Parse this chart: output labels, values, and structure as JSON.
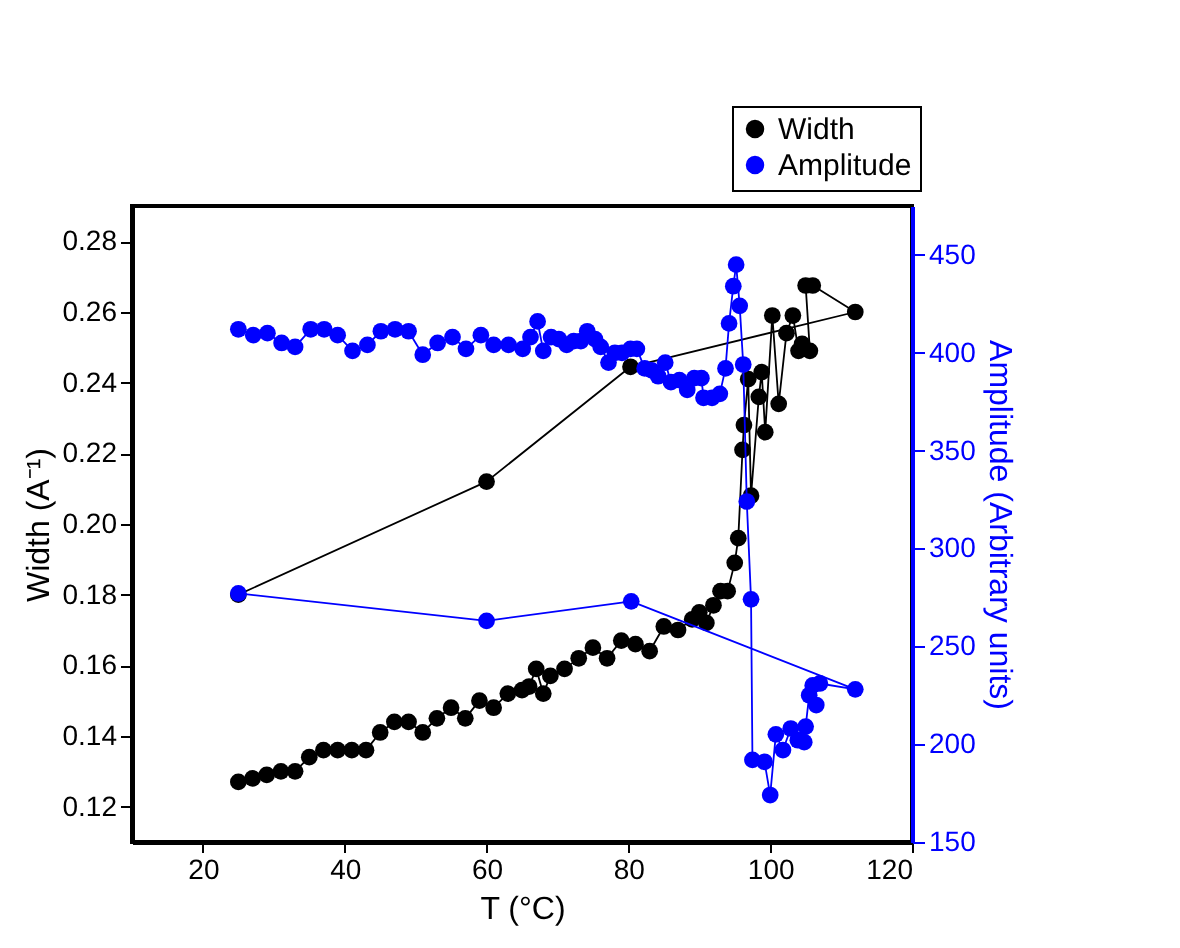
{
  "chart_data": {
    "type": "line",
    "xlabel": "T (°C)",
    "ylabel": "Width (A⁻¹)",
    "y2label": "Amplitude (Arbitrary units)",
    "xlim": [
      10,
      120
    ],
    "xticks": [
      20,
      40,
      60,
      80,
      100,
      120
    ],
    "ylim": [
      0.11,
      0.29
    ],
    "yticks": [
      0.12,
      0.14,
      0.16,
      0.18,
      {
        "value": 0.2,
        "label": "0.20"
      },
      0.22,
      0.24,
      0.26,
      0.28
    ],
    "y2lim": [
      150,
      475
    ],
    "y2ticks": [
      150,
      200,
      250,
      300,
      350,
      400,
      450
    ],
    "marker": "circle",
    "line_style": "solid",
    "legend": "top right",
    "grid": false,
    "series": [
      {
        "name": "Width",
        "color": "#000000",
        "x": [
          25,
          27,
          29,
          31,
          33,
          35,
          37,
          39,
          41,
          43,
          45,
          47,
          49,
          51,
          53,
          55,
          57,
          59,
          61,
          63,
          65,
          66,
          67,
          68,
          69,
          71,
          73,
          75,
          77,
          79,
          81,
          83,
          85,
          87,
          89,
          90,
          91,
          92,
          93,
          94,
          95,
          95.5,
          96.1,
          96.3,
          96.9,
          97.3,
          98.4,
          98.8,
          99.3,
          100.3,
          101.2,
          102.3,
          103.2,
          104,
          104.5,
          105.6,
          105,
          106,
          112,
          80.3,
          60,
          25
        ],
        "values": [
          0.127,
          0.128,
          0.129,
          0.13,
          0.13,
          0.134,
          0.136,
          0.136,
          0.136,
          0.136,
          0.141,
          0.144,
          0.144,
          0.141,
          0.145,
          0.148,
          0.145,
          0.15,
          0.148,
          0.152,
          0.153,
          0.154,
          0.159,
          0.152,
          0.157,
          0.159,
          0.162,
          0.165,
          0.162,
          0.167,
          0.166,
          0.164,
          0.171,
          0.17,
          0.173,
          0.175,
          0.172,
          0.177,
          0.181,
          0.181,
          0.189,
          0.196,
          0.221,
          0.228,
          0.241,
          0.208,
          0.236,
          0.243,
          0.226,
          0.259,
          0.234,
          0.254,
          0.259,
          0.249,
          0.251,
          0.249,
          0.2675,
          0.2675,
          0.26,
          0.2445,
          0.212,
          0.18
        ]
      },
      {
        "name": "Amplitude",
        "color": "#0000ff",
        "axis": "y2",
        "x": [
          25,
          27.1,
          29.1,
          31.1,
          33,
          35.2,
          37.1,
          39,
          41.1,
          43.2,
          45.1,
          47.1,
          49,
          51,
          53.1,
          55.2,
          57.1,
          59.2,
          61,
          63.1,
          65.1,
          66.2,
          67.2,
          68,
          69.1,
          70.2,
          71.3,
          72.3,
          73.3,
          74.2,
          75.3,
          76.1,
          77.2,
          78.1,
          79.1,
          80.3,
          81.2,
          82.3,
          83.3,
          84.2,
          85.2,
          86,
          87.2,
          88.3,
          89.3,
          90.3,
          90.6,
          91.8,
          92.9,
          93.7,
          94.2,
          94.8,
          95.2,
          95.7,
          96.2,
          96.7,
          97.3,
          97.5,
          99.2,
          100,
          100.8,
          101.8,
          102.9,
          103.9,
          104.8,
          105,
          105.5,
          106.5,
          106,
          107,
          112,
          80.4,
          60,
          25
        ],
        "values": [
          412,
          409,
          410,
          405,
          403,
          412,
          412,
          409,
          401,
          404,
          411,
          412,
          411,
          399,
          405,
          408,
          402,
          409,
          404,
          404,
          402,
          408,
          416,
          401,
          408,
          407,
          404,
          406,
          406,
          411,
          407,
          403,
          395,
          400,
          400,
          402,
          402,
          392,
          391,
          388,
          395,
          385,
          386,
          381,
          387,
          387,
          377,
          377,
          379,
          392,
          415,
          434,
          445,
          424,
          394,
          324,
          274,
          192,
          191,
          174,
          205,
          197,
          208,
          202,
          201,
          209,
          225,
          220,
          230,
          231,
          228,
          273,
          263,
          277
        ]
      }
    ]
  }
}
